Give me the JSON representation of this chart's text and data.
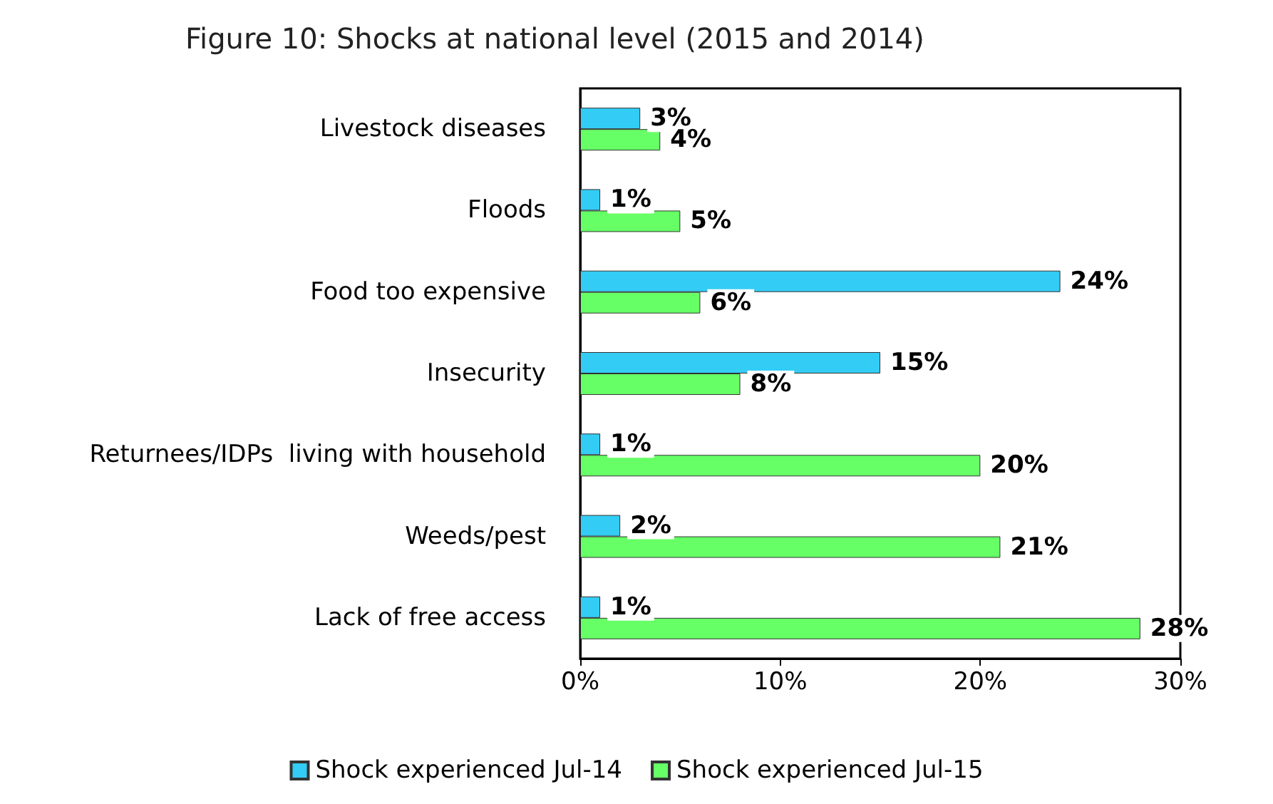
{
  "chart_data": {
    "type": "bar",
    "orientation": "horizontal",
    "title": "Figure 10: Shocks at national level (2015 and 2014)",
    "categories": [
      "Livestock diseases",
      "Floods",
      "Food too expensive",
      "Insecurity",
      "Returnees/IDPs  living with household",
      "Weeds/pest",
      "Lack of free access"
    ],
    "series": [
      {
        "name": "Shock experienced Jul-14",
        "color": "#33ccf5",
        "values": [
          3,
          1,
          24,
          15,
          1,
          2,
          1
        ],
        "value_labels": [
          "3%",
          "1%",
          "24%",
          "15%",
          "1%",
          "2%",
          "1%"
        ]
      },
      {
        "name": "Shock experienced Jul-15",
        "color": "#66ff66",
        "values": [
          4,
          5,
          6,
          8,
          20,
          21,
          28
        ],
        "value_labels": [
          "4%",
          "5%",
          "6%",
          "8%",
          "20%",
          "21%",
          "28%"
        ]
      }
    ],
    "xlim": [
      0,
      30
    ],
    "xticks": [
      {
        "value": 0,
        "label": "0%"
      },
      {
        "value": 10,
        "label": "10%"
      },
      {
        "value": 20,
        "label": "20%"
      },
      {
        "value": 30,
        "label": "30%"
      }
    ],
    "grid": false,
    "legend": "bottom"
  }
}
